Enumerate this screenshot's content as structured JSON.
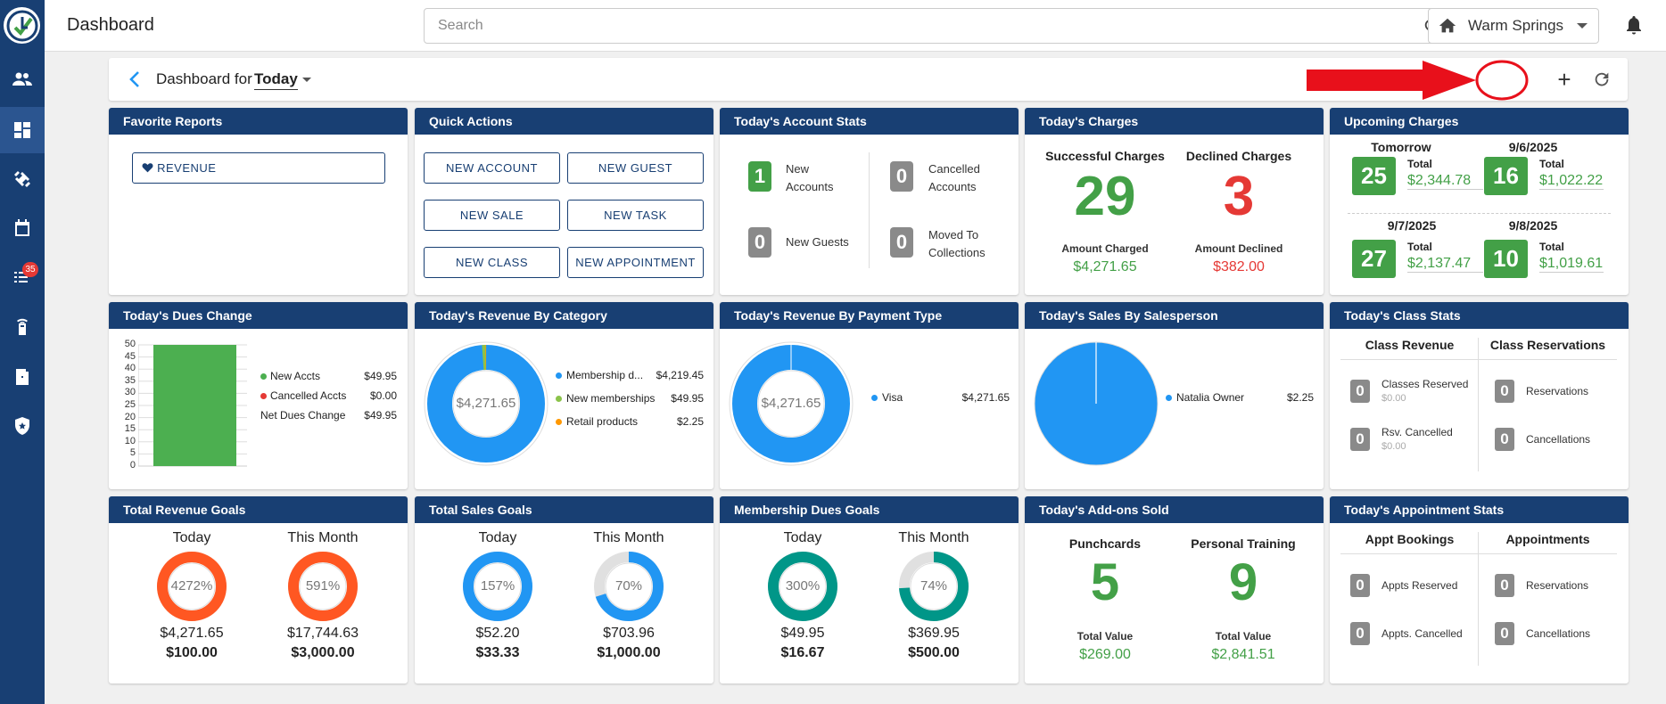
{
  "app_title": "Dashboard",
  "search": {
    "placeholder": "Search"
  },
  "location": "Warm Springs",
  "sidebar": {
    "badge_count": "35"
  },
  "dashbar": {
    "label": "Dashboard for",
    "period": "Today",
    "add": "+"
  },
  "favorite_reports": {
    "title": "Favorite Reports",
    "items": [
      "REVENUE"
    ]
  },
  "quick_actions": {
    "title": "Quick Actions",
    "buttons": [
      "NEW ACCOUNT",
      "NEW GUEST",
      "NEW SALE",
      "NEW TASK",
      "NEW CLASS",
      "NEW APPOINTMENT"
    ]
  },
  "account_stats": {
    "title": "Today's Account Stats",
    "items": [
      {
        "value": "1",
        "label1": "New",
        "label2": "Accounts"
      },
      {
        "value": "0",
        "label1": "Cancelled",
        "label2": "Accounts"
      },
      {
        "value": "0",
        "label1": "New Guests",
        "label2": ""
      },
      {
        "value": "0",
        "label1": "Moved To",
        "label2": "Collections"
      }
    ]
  },
  "todays_charges": {
    "title": "Today's Charges",
    "successful": {
      "heading": "Successful Charges",
      "count": "29",
      "amount_label": "Amount Charged",
      "amount": "$4,271.65"
    },
    "declined": {
      "heading": "Declined Charges",
      "count": "3",
      "amount_label": "Amount Declined",
      "amount": "$382.00"
    }
  },
  "upcoming_charges": {
    "title": "Upcoming Charges",
    "items": [
      {
        "date": "Tomorrow",
        "count": "25",
        "total_label": "Total",
        "total": "$2,344.78"
      },
      {
        "date": "9/6/2025",
        "count": "16",
        "total_label": "Total",
        "total": "$1,022.22"
      },
      {
        "date": "9/7/2025",
        "count": "27",
        "total_label": "Total",
        "total": "$2,137.47"
      },
      {
        "date": "9/8/2025",
        "count": "10",
        "total_label": "Total",
        "total": "$1,019.61"
      }
    ]
  },
  "dues_change": {
    "title": "Today's Dues Change",
    "yticks": [
      "50",
      "45",
      "40",
      "35",
      "30",
      "25",
      "20",
      "15",
      "10",
      "5",
      "0"
    ],
    "legend": [
      {
        "label": "New Accts",
        "value": "$49.95",
        "color": "#4caf50"
      },
      {
        "label": "Cancelled Accts",
        "value": "$0.00",
        "color": "#e53935"
      },
      {
        "label": "Net Dues Change",
        "value": "$49.95",
        "color": ""
      }
    ]
  },
  "revenue_by_category": {
    "title": "Today's Revenue By Category",
    "center": "$4,271.65",
    "legend": [
      {
        "label": "Membership d...",
        "value": "$4,219.45",
        "color": "#2196f3"
      },
      {
        "label": "New memberships",
        "value": "$49.95",
        "color": "#8bc34a"
      },
      {
        "label": "Retail products",
        "value": "$2.25",
        "color": "#ff9800"
      }
    ]
  },
  "revenue_by_payment": {
    "title": "Today's Revenue By Payment Type",
    "center": "$4,271.65",
    "legend": [
      {
        "label": "Visa",
        "value": "$4,271.65",
        "color": "#2196f3"
      }
    ]
  },
  "sales_by_salesperson": {
    "title": "Today's Sales By Salesperson",
    "legend": [
      {
        "label": "Natalia Owner",
        "value": "$2.25",
        "color": "#2196f3"
      }
    ]
  },
  "class_stats": {
    "title": "Today's Class Stats",
    "col1_header": "Class Revenue",
    "col2_header": "Class Reservations",
    "items": [
      {
        "value": "0",
        "label": "Classes Reserved",
        "sub": "$0.00"
      },
      {
        "value": "0",
        "label": "Rsv. Cancelled",
        "sub": "$0.00"
      },
      {
        "value": "0",
        "label": "Reservations",
        "sub": ""
      },
      {
        "value": "0",
        "label": "Cancellations",
        "sub": ""
      }
    ]
  },
  "total_revenue_goals": {
    "title": "Total Revenue Goals",
    "goals": [
      {
        "period": "Today",
        "pct": "4272%",
        "actual": "$4,271.65",
        "target": "$100.00",
        "color": "#ff5722",
        "fill": 1.0
      },
      {
        "period": "This Month",
        "pct": "591%",
        "actual": "$17,744.63",
        "target": "$3,000.00",
        "color": "#ff5722",
        "fill": 1.0
      }
    ]
  },
  "total_sales_goals": {
    "title": "Total Sales Goals",
    "goals": [
      {
        "period": "Today",
        "pct": "157%",
        "actual": "$52.20",
        "target": "$33.33",
        "color": "#2196f3",
        "fill": 1.0
      },
      {
        "period": "This Month",
        "pct": "70%",
        "actual": "$703.96",
        "target": "$1,000.00",
        "color": "#2196f3",
        "fill": 0.7
      }
    ]
  },
  "membership_dues_goals": {
    "title": "Membership Dues Goals",
    "goals": [
      {
        "period": "Today",
        "pct": "300%",
        "actual": "$49.95",
        "target": "$16.67",
        "color": "#009688",
        "fill": 1.0
      },
      {
        "period": "This Month",
        "pct": "74%",
        "actual": "$369.95",
        "target": "$500.00",
        "color": "#009688",
        "fill": 0.74
      }
    ]
  },
  "addons_sold": {
    "title": "Today's Add-ons Sold",
    "items": [
      {
        "heading": "Punchcards",
        "count": "5",
        "value_label": "Total Value",
        "value": "$269.00"
      },
      {
        "heading": "Personal Training",
        "count": "9",
        "value_label": "Total Value",
        "value": "$2,841.51"
      }
    ]
  },
  "appointment_stats": {
    "title": "Today's Appointment Stats",
    "col1_header": "Appt Bookings",
    "col2_header": "Appointments",
    "items": [
      {
        "value": "0",
        "label": "Appts Reserved"
      },
      {
        "value": "0",
        "label": "Appts. Cancelled"
      },
      {
        "value": "0",
        "label": "Reservations"
      },
      {
        "value": "0",
        "label": "Cancellations"
      }
    ]
  }
}
